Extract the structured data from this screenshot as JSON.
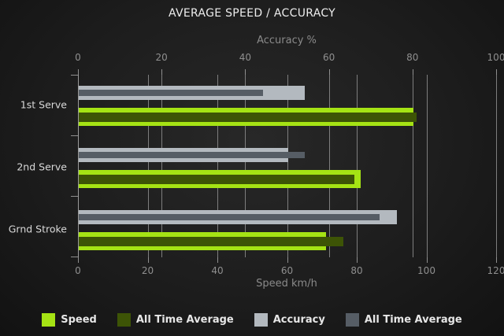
{
  "title": "AVERAGE SPEED / ACCURACY",
  "chart_data": {
    "type": "bar",
    "orientation": "horizontal",
    "grid": true,
    "legend_position": "bottom",
    "categories": [
      "1st Serve",
      "2nd Serve",
      "Grnd Stroke"
    ],
    "axes": {
      "top": {
        "label": "Accuracy %",
        "min": 0,
        "max": 100,
        "ticks": [
          0,
          20,
          40,
          60,
          80,
          100
        ]
      },
      "bottom": {
        "label": "Speed km/h",
        "min": 0,
        "max": 120,
        "ticks": [
          0,
          20,
          40,
          60,
          80,
          100,
          120
        ]
      }
    },
    "series": [
      {
        "name": "Speed",
        "axis": "bottom",
        "color": "#a5e314",
        "layer": "outer",
        "values": [
          96,
          81,
          71
        ]
      },
      {
        "name": "All Time Average",
        "axis": "bottom",
        "color": "#3d5406",
        "layer": "inner",
        "values": [
          97,
          79,
          76
        ]
      },
      {
        "name": "Accuracy",
        "axis": "top",
        "color": "#b3b9bf",
        "layer": "outer",
        "values": [
          54,
          50,
          76
        ]
      },
      {
        "name": "All Time Average",
        "axis": "top",
        "color": "#565d65",
        "layer": "inner",
        "values": [
          44,
          54,
          72
        ]
      }
    ],
    "pairs": [
      {
        "slot": "accuracy",
        "axis": "top",
        "outer_series": 2,
        "inner_series": 3
      },
      {
        "slot": "speed",
        "axis": "bottom",
        "outer_series": 0,
        "inner_series": 1
      }
    ]
  },
  "colors": {
    "background": "#1d1d1d",
    "gridline": "#7e7e7e",
    "axis": "#9a9a9a",
    "tick_label": "#8f8f8f",
    "category_label": "#d9d9d9",
    "title_text": "#ededed",
    "legend_text": "#e6e6e6"
  }
}
